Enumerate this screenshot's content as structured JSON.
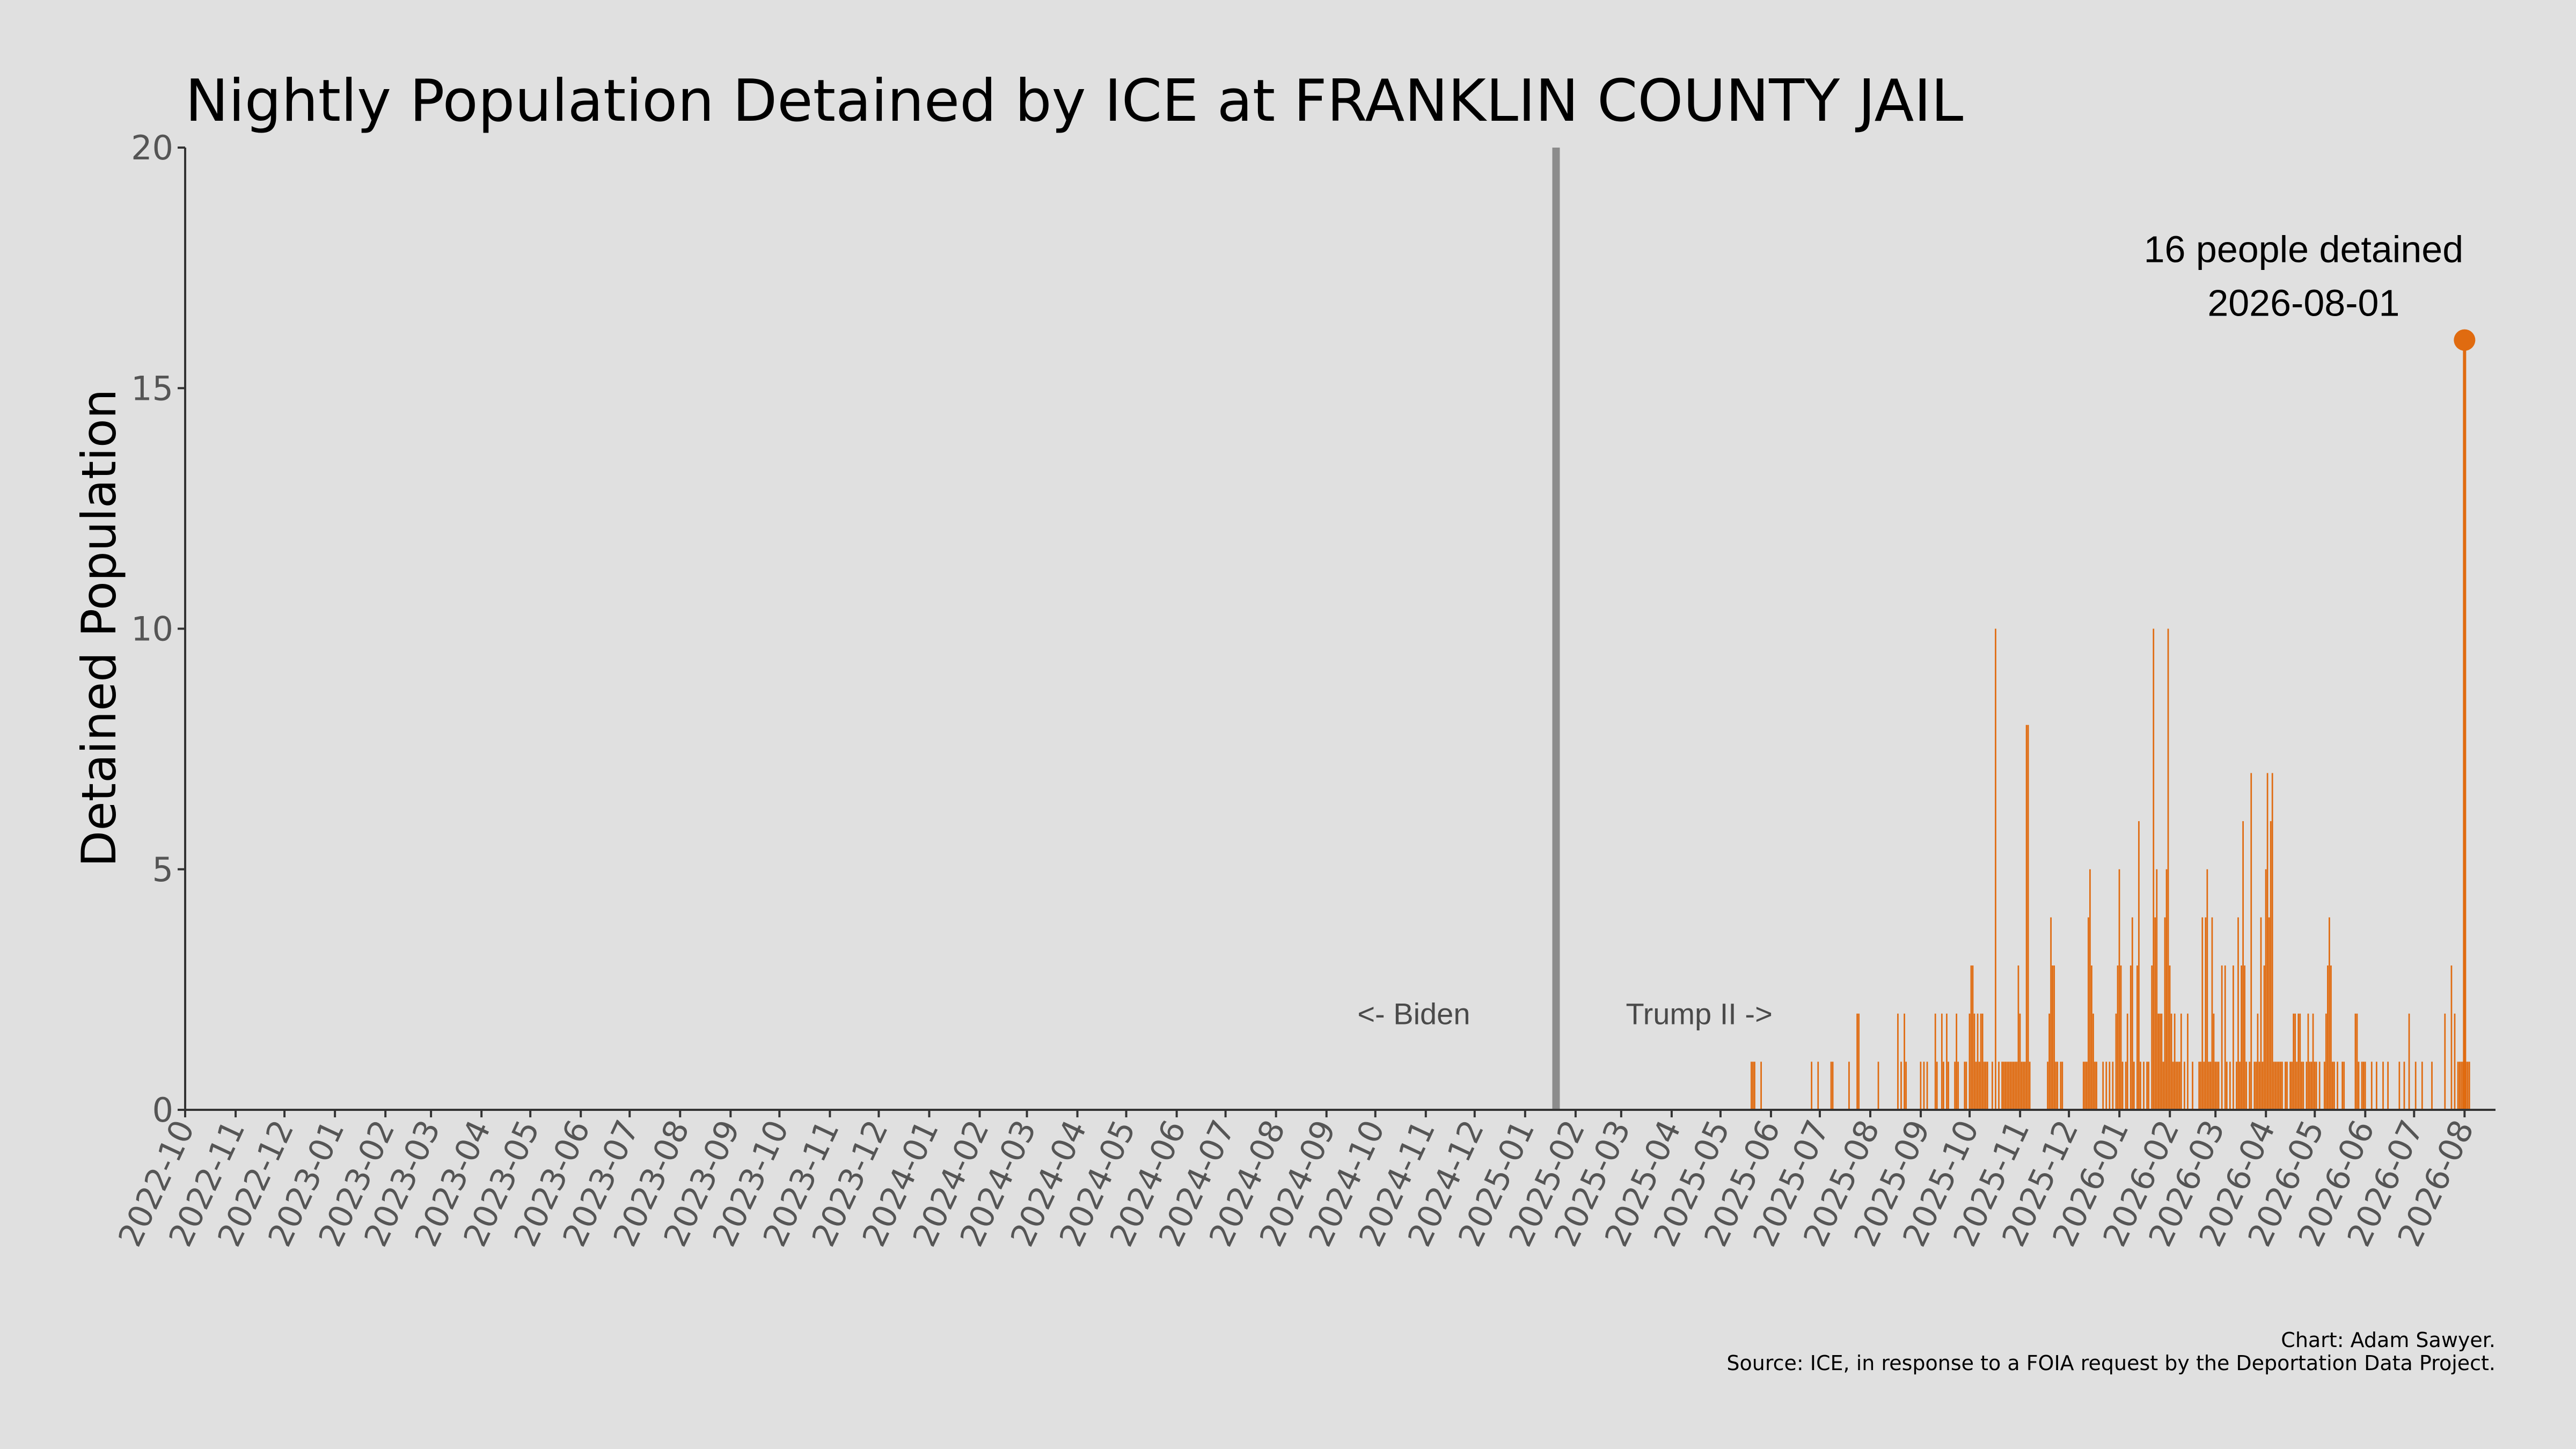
{
  "chart_data": {
    "type": "bar",
    "title": "Nightly Population Detained by ICE at FRANKLIN COUNTY JAIL",
    "ylabel": "Detained Population",
    "xlabel": "",
    "ylim": [
      0,
      20
    ],
    "yticks": [
      0,
      5,
      10,
      15,
      20
    ],
    "xlim": [
      "2022-10-01",
      "2026-08-20"
    ],
    "xticks": [
      "2022-10",
      "2022-11",
      "2022-12",
      "2023-01",
      "2023-02",
      "2023-03",
      "2023-04",
      "2023-05",
      "2023-06",
      "2023-07",
      "2023-08",
      "2023-09",
      "2023-10",
      "2023-11",
      "2023-12",
      "2024-01",
      "2024-02",
      "2024-03",
      "2024-04",
      "2024-05",
      "2024-06",
      "2024-07",
      "2024-08",
      "2024-09",
      "2024-10",
      "2024-11",
      "2024-12",
      "2025-01",
      "2025-02",
      "2025-03",
      "2025-04",
      "2025-05",
      "2025-06",
      "2025-07",
      "2025-08",
      "2025-09",
      "2025-10",
      "2025-11",
      "2025-12",
      "2026-01",
      "2026-02",
      "2026-03",
      "2026-04",
      "2026-05",
      "2026-06",
      "2026-07",
      "2026-08"
    ],
    "grid": false,
    "bar_color": "#e06b10",
    "divider": {
      "date": "2025-01-20",
      "color": "#8c8c8c"
    },
    "annotations": {
      "left": "<- Biden",
      "right": "Trump II ->"
    },
    "peak": {
      "date": "2026-08-01",
      "value": 16,
      "line1": "16 people detained",
      "line2": "2026-08-01"
    },
    "series": [
      {
        "points": [
          [
            "2025-05-20",
            1
          ],
          [
            "2025-05-21",
            1
          ],
          [
            "2025-05-22",
            1
          ],
          [
            "2025-05-26",
            1
          ],
          [
            "2025-06-26",
            1
          ],
          [
            "2025-06-30",
            1
          ],
          [
            "2025-07-08",
            1
          ],
          [
            "2025-07-09",
            1
          ],
          [
            "2025-07-19",
            1
          ],
          [
            "2025-07-24",
            2
          ],
          [
            "2025-07-25",
            2
          ],
          [
            "2025-08-06",
            1
          ],
          [
            "2025-08-18",
            2
          ],
          [
            "2025-08-20",
            1
          ],
          [
            "2025-08-22",
            2
          ],
          [
            "2025-08-23",
            1
          ],
          [
            "2025-09-01",
            1
          ],
          [
            "2025-09-03",
            1
          ],
          [
            "2025-09-05",
            1
          ],
          [
            "2025-09-10",
            2
          ],
          [
            "2025-09-11",
            1
          ],
          [
            "2025-09-14",
            2
          ],
          [
            "2025-09-15",
            1
          ],
          [
            "2025-09-17",
            2
          ],
          [
            "2025-09-18",
            1
          ],
          [
            "2025-09-22",
            1
          ],
          [
            "2025-09-23",
            2
          ],
          [
            "2025-09-24",
            1
          ],
          [
            "2025-09-28",
            1
          ],
          [
            "2025-09-29",
            1
          ],
          [
            "2025-10-01",
            2
          ],
          [
            "2025-10-02",
            3
          ],
          [
            "2025-10-03",
            3
          ],
          [
            "2025-10-04",
            2
          ],
          [
            "2025-10-05",
            1
          ],
          [
            "2025-10-06",
            2
          ],
          [
            "2025-10-07",
            1
          ],
          [
            "2025-10-08",
            2
          ],
          [
            "2025-10-09",
            2
          ],
          [
            "2025-10-10",
            1
          ],
          [
            "2025-10-11",
            1
          ],
          [
            "2025-10-12",
            1
          ],
          [
            "2025-10-15",
            1
          ],
          [
            "2025-10-17",
            10
          ],
          [
            "2025-10-19",
            1
          ],
          [
            "2025-10-21",
            1
          ],
          [
            "2025-10-22",
            1
          ],
          [
            "2025-10-23",
            1
          ],
          [
            "2025-10-24",
            1
          ],
          [
            "2025-10-25",
            1
          ],
          [
            "2025-10-26",
            1
          ],
          [
            "2025-10-27",
            1
          ],
          [
            "2025-10-28",
            1
          ],
          [
            "2025-10-29",
            1
          ],
          [
            "2025-10-30",
            1
          ],
          [
            "2025-10-31",
            3
          ],
          [
            "2025-11-01",
            2
          ],
          [
            "2025-11-02",
            1
          ],
          [
            "2025-11-03",
            1
          ],
          [
            "2025-11-04",
            1
          ],
          [
            "2025-11-05",
            8
          ],
          [
            "2025-11-06",
            8
          ],
          [
            "2025-11-07",
            1
          ],
          [
            "2025-11-18",
            1
          ],
          [
            "2025-11-19",
            2
          ],
          [
            "2025-11-20",
            4
          ],
          [
            "2025-11-21",
            3
          ],
          [
            "2025-11-22",
            3
          ],
          [
            "2025-11-23",
            1
          ],
          [
            "2025-11-24",
            1
          ],
          [
            "2025-11-26",
            1
          ],
          [
            "2025-11-27",
            1
          ],
          [
            "2025-12-10",
            1
          ],
          [
            "2025-12-11",
            1
          ],
          [
            "2025-12-12",
            1
          ],
          [
            "2025-12-13",
            4
          ],
          [
            "2025-12-14",
            5
          ],
          [
            "2025-12-15",
            3
          ],
          [
            "2025-12-16",
            2
          ],
          [
            "2025-12-17",
            1
          ],
          [
            "2025-12-18",
            1
          ],
          [
            "2025-12-22",
            1
          ],
          [
            "2025-12-24",
            1
          ],
          [
            "2025-12-26",
            1
          ],
          [
            "2025-12-28",
            1
          ],
          [
            "2025-12-30",
            2
          ],
          [
            "2025-12-31",
            3
          ],
          [
            "2026-01-01",
            5
          ],
          [
            "2026-01-02",
            3
          ],
          [
            "2026-01-03",
            1
          ],
          [
            "2026-01-05",
            1
          ],
          [
            "2026-01-06",
            2
          ],
          [
            "2026-01-08",
            3
          ],
          [
            "2026-01-09",
            4
          ],
          [
            "2026-01-10",
            1
          ],
          [
            "2026-01-12",
            3
          ],
          [
            "2026-01-13",
            6
          ],
          [
            "2026-01-14",
            1
          ],
          [
            "2026-01-16",
            1
          ],
          [
            "2026-01-18",
            1
          ],
          [
            "2026-01-19",
            1
          ],
          [
            "2026-01-21",
            3
          ],
          [
            "2026-01-22",
            10
          ],
          [
            "2026-01-23",
            4
          ],
          [
            "2026-01-24",
            5
          ],
          [
            "2026-01-25",
            2
          ],
          [
            "2026-01-26",
            2
          ],
          [
            "2026-01-27",
            2
          ],
          [
            "2026-01-28",
            1
          ],
          [
            "2026-01-29",
            4
          ],
          [
            "2026-01-30",
            5
          ],
          [
            "2026-01-31",
            10
          ],
          [
            "2026-02-01",
            3
          ],
          [
            "2026-02-02",
            2
          ],
          [
            "2026-02-03",
            1
          ],
          [
            "2026-02-04",
            2
          ],
          [
            "2026-02-05",
            1
          ],
          [
            "2026-02-06",
            1
          ],
          [
            "2026-02-07",
            1
          ],
          [
            "2026-02-08",
            2
          ],
          [
            "2026-02-10",
            1
          ],
          [
            "2026-02-12",
            2
          ],
          [
            "2026-02-15",
            1
          ],
          [
            "2026-02-19",
            1
          ],
          [
            "2026-02-20",
            1
          ],
          [
            "2026-02-21",
            4
          ],
          [
            "2026-02-22",
            1
          ],
          [
            "2026-02-23",
            4
          ],
          [
            "2026-02-24",
            5
          ],
          [
            "2026-02-25",
            1
          ],
          [
            "2026-02-26",
            1
          ],
          [
            "2026-02-27",
            4
          ],
          [
            "2026-02-28",
            2
          ],
          [
            "2026-03-01",
            1
          ],
          [
            "2026-03-02",
            1
          ],
          [
            "2026-03-03",
            1
          ],
          [
            "2026-03-05",
            3
          ],
          [
            "2026-03-07",
            3
          ],
          [
            "2026-03-08",
            1
          ],
          [
            "2026-03-10",
            1
          ],
          [
            "2026-03-12",
            3
          ],
          [
            "2026-03-14",
            1
          ],
          [
            "2026-03-15",
            4
          ],
          [
            "2026-03-16",
            1
          ],
          [
            "2026-03-17",
            3
          ],
          [
            "2026-03-18",
            6
          ],
          [
            "2026-03-19",
            3
          ],
          [
            "2026-03-20",
            1
          ],
          [
            "2026-03-22",
            1
          ],
          [
            "2026-03-23",
            7
          ],
          [
            "2026-03-25",
            1
          ],
          [
            "2026-03-26",
            1
          ],
          [
            "2026-03-27",
            2
          ],
          [
            "2026-03-28",
            1
          ],
          [
            "2026-03-29",
            4
          ],
          [
            "2026-03-30",
            1
          ],
          [
            "2026-03-31",
            3
          ],
          [
            "2026-04-01",
            5
          ],
          [
            "2026-04-02",
            7
          ],
          [
            "2026-04-03",
            4
          ],
          [
            "2026-04-04",
            6
          ],
          [
            "2026-04-05",
            7
          ],
          [
            "2026-04-06",
            1
          ],
          [
            "2026-04-07",
            1
          ],
          [
            "2026-04-08",
            1
          ],
          [
            "2026-04-09",
            1
          ],
          [
            "2026-04-10",
            1
          ],
          [
            "2026-04-11",
            1
          ],
          [
            "2026-04-13",
            1
          ],
          [
            "2026-04-14",
            1
          ],
          [
            "2026-04-16",
            1
          ],
          [
            "2026-04-17",
            1
          ],
          [
            "2026-04-18",
            2
          ],
          [
            "2026-04-19",
            2
          ],
          [
            "2026-04-20",
            1
          ],
          [
            "2026-04-21",
            2
          ],
          [
            "2026-04-22",
            2
          ],
          [
            "2026-04-23",
            1
          ],
          [
            "2026-04-24",
            1
          ],
          [
            "2026-04-26",
            1
          ],
          [
            "2026-04-27",
            2
          ],
          [
            "2026-04-28",
            1
          ],
          [
            "2026-04-29",
            1
          ],
          [
            "2026-04-30",
            2
          ],
          [
            "2026-05-01",
            1
          ],
          [
            "2026-05-02",
            1
          ],
          [
            "2026-05-04",
            1
          ],
          [
            "2026-05-07",
            1
          ],
          [
            "2026-05-08",
            2
          ],
          [
            "2026-05-09",
            3
          ],
          [
            "2026-05-10",
            4
          ],
          [
            "2026-05-11",
            3
          ],
          [
            "2026-05-12",
            1
          ],
          [
            "2026-05-13",
            1
          ],
          [
            "2026-05-15",
            1
          ],
          [
            "2026-05-18",
            1
          ],
          [
            "2026-05-19",
            1
          ],
          [
            "2026-05-26",
            2
          ],
          [
            "2026-05-27",
            2
          ],
          [
            "2026-05-28",
            1
          ],
          [
            "2026-05-30",
            1
          ],
          [
            "2026-05-31",
            1
          ],
          [
            "2026-06-01",
            1
          ],
          [
            "2026-06-05",
            1
          ],
          [
            "2026-06-08",
            1
          ],
          [
            "2026-06-12",
            1
          ],
          [
            "2026-06-15",
            1
          ],
          [
            "2026-06-22",
            1
          ],
          [
            "2026-06-25",
            1
          ],
          [
            "2026-06-28",
            2
          ],
          [
            "2026-07-02",
            1
          ],
          [
            "2026-07-06",
            1
          ],
          [
            "2026-07-12",
            1
          ],
          [
            "2026-07-20",
            2
          ],
          [
            "2026-07-24",
            3
          ],
          [
            "2026-07-26",
            2
          ],
          [
            "2026-07-28",
            1
          ],
          [
            "2026-07-29",
            1
          ],
          [
            "2026-07-30",
            1
          ],
          [
            "2026-07-31",
            1
          ],
          [
            "2026-08-01",
            16
          ],
          [
            "2026-08-02",
            1
          ],
          [
            "2026-08-03",
            1
          ],
          [
            "2026-08-04",
            1
          ]
        ]
      }
    ]
  },
  "credit": {
    "line1": "Chart: Adam Sawyer.",
    "line2": "Source: ICE, in response to a FOIA request by the Deportation Data Project."
  }
}
